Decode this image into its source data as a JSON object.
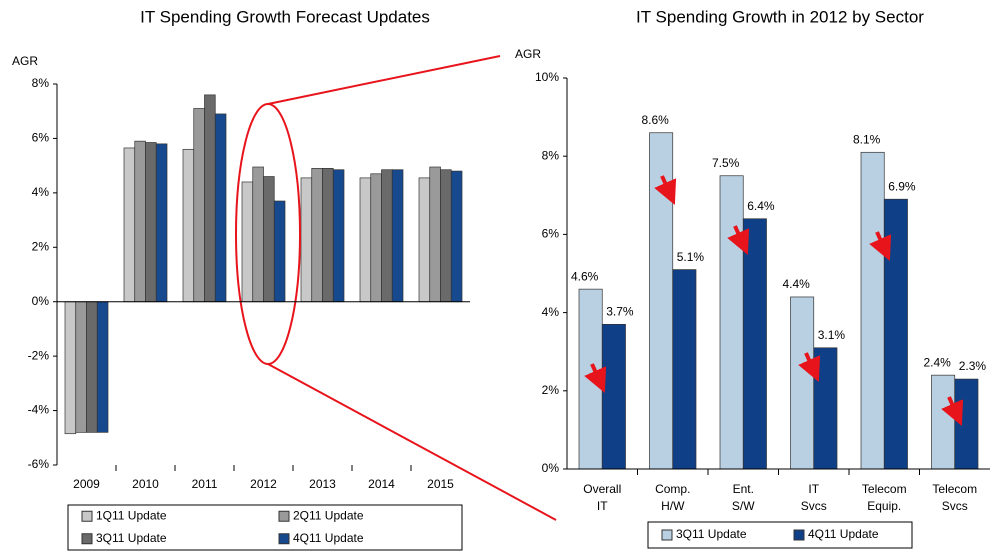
{
  "chart_data": [
    {
      "type": "bar",
      "title": "IT Spending Growth Forecast Updates",
      "y_label": "AGR",
      "categories": [
        "2009",
        "2010",
        "2011",
        "2012",
        "2013",
        "2014",
        "2015"
      ],
      "series": [
        {
          "name": "1Q11 Update",
          "color": "#c8c8c8",
          "values": [
            -4.85,
            5.65,
            5.6,
            4.4,
            4.55,
            4.55,
            4.55
          ]
        },
        {
          "name": "2Q11 Update",
          "color": "#9a9a9a",
          "values": [
            -4.8,
            5.9,
            7.1,
            4.95,
            4.9,
            4.7,
            4.95
          ]
        },
        {
          "name": "3Q11 Update",
          "color": "#6a6a6a",
          "values": [
            -4.8,
            5.85,
            7.6,
            4.6,
            4.9,
            4.85,
            4.85
          ]
        },
        {
          "name": "4Q11 Update",
          "color": "#17498f",
          "values": [
            -4.8,
            5.8,
            6.9,
            3.7,
            4.85,
            4.85,
            4.8
          ]
        }
      ],
      "ylim": [
        -6,
        8
      ],
      "yticks": [
        {
          "value": -6,
          "label": "-6%"
        },
        {
          "value": -4,
          "label": "-4%"
        },
        {
          "value": -2,
          "label": "-2%"
        },
        {
          "value": 0,
          "label": "0%"
        },
        {
          "value": 2,
          "label": "2%"
        },
        {
          "value": 4,
          "label": "4%"
        },
        {
          "value": 6,
          "label": "6%"
        },
        {
          "value": 8,
          "label": "8%"
        }
      ],
      "legend": "bottom"
    },
    {
      "type": "bar",
      "title": "IT Spending Growth in 2012 by Sector",
      "y_label": "AGR",
      "categories": [
        "Overall IT",
        "Comp. H/W",
        "Ent. S/W",
        "IT Svcs",
        "Telecom Equip.",
        "Telecom Svcs"
      ],
      "series": [
        {
          "name": "3Q11 Update",
          "color": "#b9cfe2",
          "values": [
            4.6,
            8.6,
            7.5,
            4.4,
            8.1,
            2.4
          ],
          "value_labels": [
            "4.6%",
            "8.6%",
            "7.5%",
            "4.4%",
            "8.1%",
            "2.4%"
          ]
        },
        {
          "name": "4Q11 Update",
          "color": "#0f3f87",
          "values": [
            3.7,
            5.1,
            6.4,
            3.1,
            6.9,
            2.3
          ],
          "value_labels": [
            "3.7%",
            "5.1%",
            "6.4%",
            "3.1%",
            "6.9%",
            "2.3%"
          ]
        }
      ],
      "ylim": [
        0,
        10
      ],
      "yticks": [
        {
          "value": 0,
          "label": "0%"
        },
        {
          "value": 2,
          "label": "2%"
        },
        {
          "value": 4,
          "label": "4%"
        },
        {
          "value": 6,
          "label": "6%"
        },
        {
          "value": 8,
          "label": "8%"
        },
        {
          "value": 10,
          "label": "10%"
        }
      ],
      "legend": "bottom"
    }
  ]
}
